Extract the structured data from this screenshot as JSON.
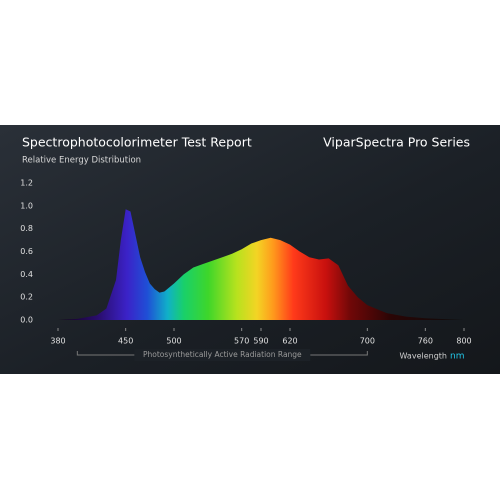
{
  "chart_data": {
    "type": "area",
    "title": "Spectrophotocolorimeter Test Report",
    "subtitle": "Relative Energy Distribution",
    "brand": "ViparSpectra Pro Series",
    "range_annotation": "Photosynthetically Active Radiation Range",
    "x_label": "Wavelength",
    "x_unit": "nm",
    "x": [
      380,
      400,
      420,
      430,
      440,
      445,
      450,
      455,
      460,
      465,
      470,
      475,
      480,
      485,
      490,
      500,
      510,
      520,
      530,
      540,
      550,
      560,
      570,
      580,
      590,
      600,
      610,
      620,
      630,
      640,
      650,
      660,
      670,
      680,
      690,
      700,
      720,
      740,
      760,
      800
    ],
    "values": [
      0,
      0.01,
      0.04,
      0.1,
      0.35,
      0.7,
      0.97,
      0.95,
      0.75,
      0.55,
      0.42,
      0.32,
      0.27,
      0.24,
      0.25,
      0.32,
      0.4,
      0.46,
      0.49,
      0.52,
      0.55,
      0.58,
      0.62,
      0.67,
      0.7,
      0.72,
      0.7,
      0.66,
      0.6,
      0.55,
      0.53,
      0.54,
      0.48,
      0.3,
      0.2,
      0.13,
      0.06,
      0.03,
      0.015,
      0
    ],
    "xlim": [
      380,
      800
    ],
    "ylim": [
      0,
      1.2
    ],
    "xticks": [
      380,
      450,
      500,
      570,
      590,
      620,
      700,
      760,
      800
    ],
    "yticks": [
      {
        "value": 0,
        "label": "0.0"
      },
      0.2,
      0.4,
      0.6,
      0.8,
      {
        "value": 1,
        "label": "1.0"
      },
      1.2
    ],
    "par_range": [
      400,
      700
    ],
    "grid": false
  }
}
